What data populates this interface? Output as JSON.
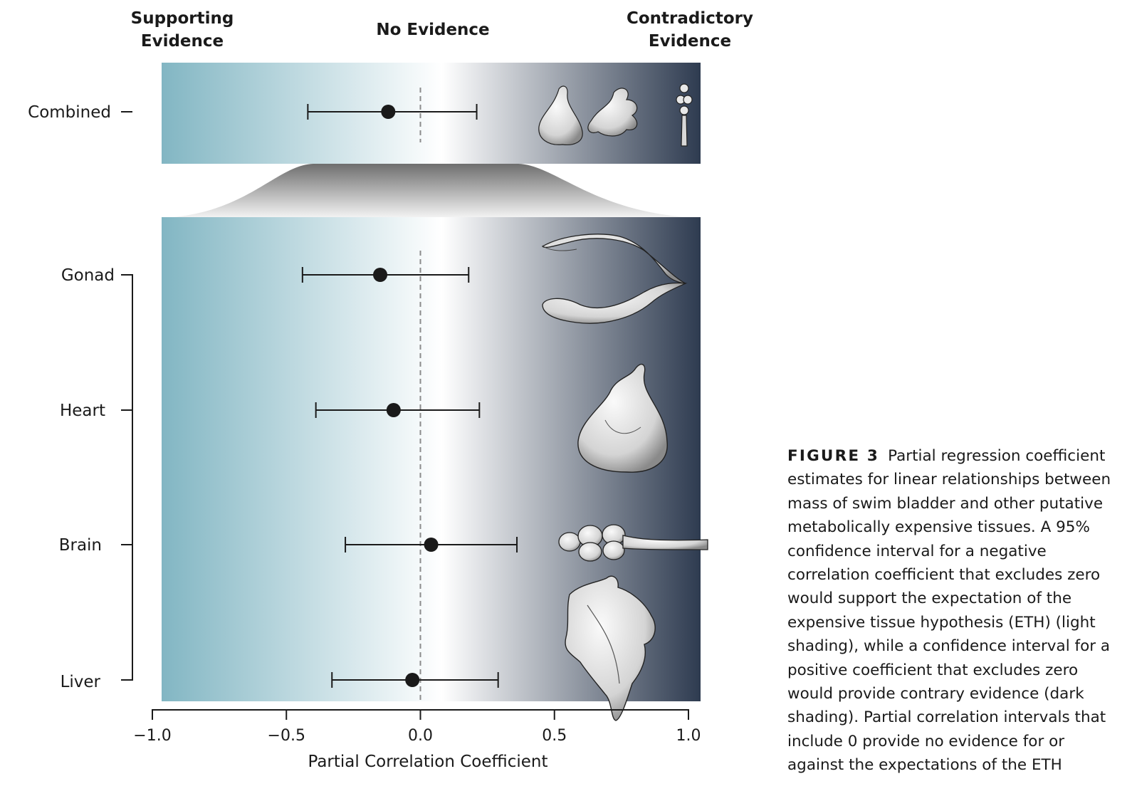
{
  "headers": {
    "left": [
      "Supporting",
      "Evidence"
    ],
    "center": "No Evidence",
    "right": [
      "Contradictory",
      "Evidence"
    ]
  },
  "caption": {
    "label": "FIGURE 3",
    "text": "Partial regression coefficient estimates for linear relationships between mass of swim bladder and other putative metabolically expensive tissues. A 95% confidence interval for a negative correlation coefficient that excludes zero would support the expectation of the expensive tissue hypothesis (ETH) (light shading), while a confidence interval for a positive coefficient that excludes zero would provide contrary evidence (dark shading). Partial correlation intervals that include 0 provide no evidence for or against the expectations of the ETH"
  },
  "colors": {
    "supporting": "#82b6c3",
    "neutral": "#ffffff",
    "contradictory": "#2e3b50",
    "marker": "#1a1a1a"
  },
  "icons": [
    "heart-illustration",
    "liver-illustration",
    "brain-illustration",
    "gonad-illustration"
  ],
  "chart_data": {
    "type": "forest",
    "xlabel": "Partial Correlation Coefficient",
    "xlim": [
      -1.0,
      1.0
    ],
    "xticks": [
      -1.0,
      -0.5,
      0.0,
      0.5,
      1.0
    ],
    "xtick_labels": [
      "−1.0",
      "−0.5",
      "0.0",
      "0.5",
      "1.0"
    ],
    "reference_line": 0,
    "rows": [
      {
        "name": "Combined",
        "estimate": -0.12,
        "lower": -0.42,
        "upper": 0.21,
        "panel": "top"
      },
      {
        "name": "Gonad",
        "estimate": -0.15,
        "lower": -0.44,
        "upper": 0.18,
        "panel": "bottom"
      },
      {
        "name": "Heart",
        "estimate": -0.1,
        "lower": -0.39,
        "upper": 0.22,
        "panel": "bottom"
      },
      {
        "name": "Brain",
        "estimate": 0.04,
        "lower": -0.28,
        "upper": 0.36,
        "panel": "bottom"
      },
      {
        "name": "Liver",
        "estimate": -0.03,
        "lower": -0.33,
        "upper": 0.29,
        "panel": "bottom"
      }
    ]
  }
}
